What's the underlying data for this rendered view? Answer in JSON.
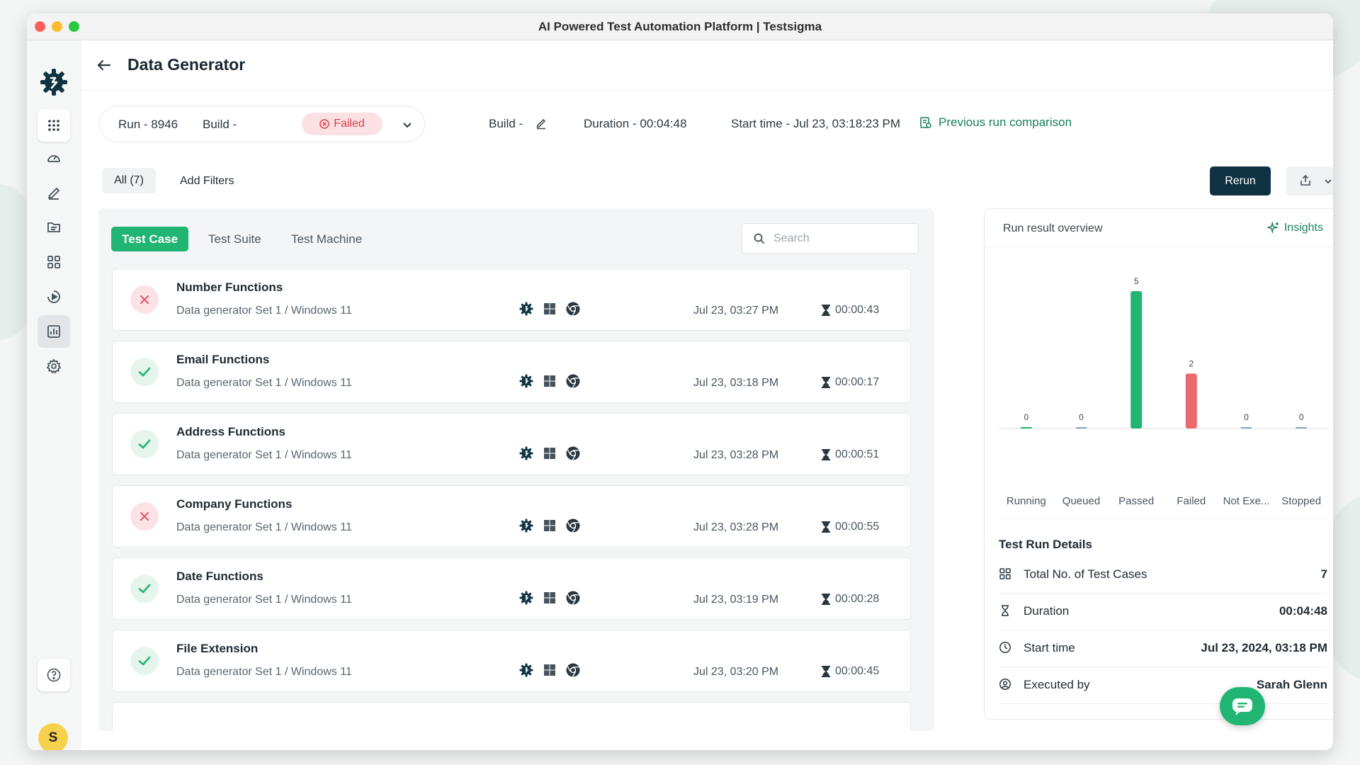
{
  "window": {
    "title": "AI Powered Test Automation Platform | Testsigma"
  },
  "sidebar": {
    "items": [
      {
        "name": "apps"
      },
      {
        "name": "dashboard"
      },
      {
        "name": "test-development"
      },
      {
        "name": "test-data"
      },
      {
        "name": "test-plans"
      },
      {
        "name": "runs"
      },
      {
        "name": "reports"
      },
      {
        "name": "settings"
      }
    ],
    "active_item": "reports",
    "avatar_initial": "S"
  },
  "header": {
    "title": "Data Generator"
  },
  "run_info": {
    "run_label": "Run - 8946",
    "build_label": "Build -",
    "status": "Failed",
    "build_edit_label": "Build -",
    "duration": "Duration - 00:04:48",
    "start_time": "Start time - Jul 23, 03:18:23 PM",
    "previous_run_comparison": "Previous run comparison"
  },
  "filters": {
    "all_label": "All (7)",
    "add_filters": "Add Filters"
  },
  "actions": {
    "rerun": "Rerun"
  },
  "tabs": [
    {
      "label": "Test Case",
      "active": true
    },
    {
      "label": "Test Suite",
      "active": false
    },
    {
      "label": "Test Machine",
      "active": false
    }
  ],
  "search": {
    "placeholder": "Search",
    "value": ""
  },
  "test_cases": [
    {
      "name": "Number Functions",
      "subtitle": "Data generator Set 1 / Windows 11",
      "status": "failed",
      "date": "Jul 23, 03:27 PM",
      "duration": "00:00:43"
    },
    {
      "name": "Email Functions",
      "subtitle": "Data generator Set 1 / Windows 11",
      "status": "passed",
      "date": "Jul 23, 03:18 PM",
      "duration": "00:00:17"
    },
    {
      "name": "Address Functions",
      "subtitle": "Data generator Set 1 / Windows 11",
      "status": "passed",
      "date": "Jul 23, 03:28 PM",
      "duration": "00:00:51"
    },
    {
      "name": "Company Functions",
      "subtitle": "Data generator Set 1 / Windows 11",
      "status": "failed",
      "date": "Jul 23, 03:28 PM",
      "duration": "00:00:55"
    },
    {
      "name": "Date Functions",
      "subtitle": "Data generator Set 1 / Windows 11",
      "status": "passed",
      "date": "Jul 23, 03:19 PM",
      "duration": "00:00:28"
    },
    {
      "name": "File Extension",
      "subtitle": "Data generator Set 1 / Windows 11",
      "status": "passed",
      "date": "Jul 23, 03:20 PM",
      "duration": "00:00:45"
    }
  ],
  "overview": {
    "title": "Run result overview",
    "insights_label": "Insights"
  },
  "chart_data": {
    "type": "bar",
    "categories": [
      "Running",
      "Queued",
      "Passed",
      "Failed",
      "Not Exe...",
      "Stopped"
    ],
    "values": [
      0,
      0,
      5,
      2,
      0,
      0
    ],
    "colors": [
      "#21b573",
      "#8aa2c8",
      "#21b573",
      "#ec6a6e",
      "#8aa2c8",
      "#8aa2c8"
    ],
    "data_labels": true,
    "grid": false,
    "title": "",
    "xlabel": "",
    "ylabel": ""
  },
  "run_details": {
    "title": "Test Run Details",
    "rows": [
      {
        "label": "Total No. of Test Cases",
        "value": "7",
        "icon": "grid-icon"
      },
      {
        "label": "Duration",
        "value": "00:04:48",
        "icon": "hourglass-icon"
      },
      {
        "label": "Start time",
        "value": "Jul 23, 2024, 03:18 PM",
        "icon": "clock-icon"
      },
      {
        "label": "Executed by",
        "value": "Sarah Glenn",
        "icon": "user-circle-icon"
      }
    ]
  },
  "colors": {
    "accent": "#21b573",
    "brand_dark": "#0f3342",
    "failed": "#de3d4b",
    "link": "#19825a"
  }
}
